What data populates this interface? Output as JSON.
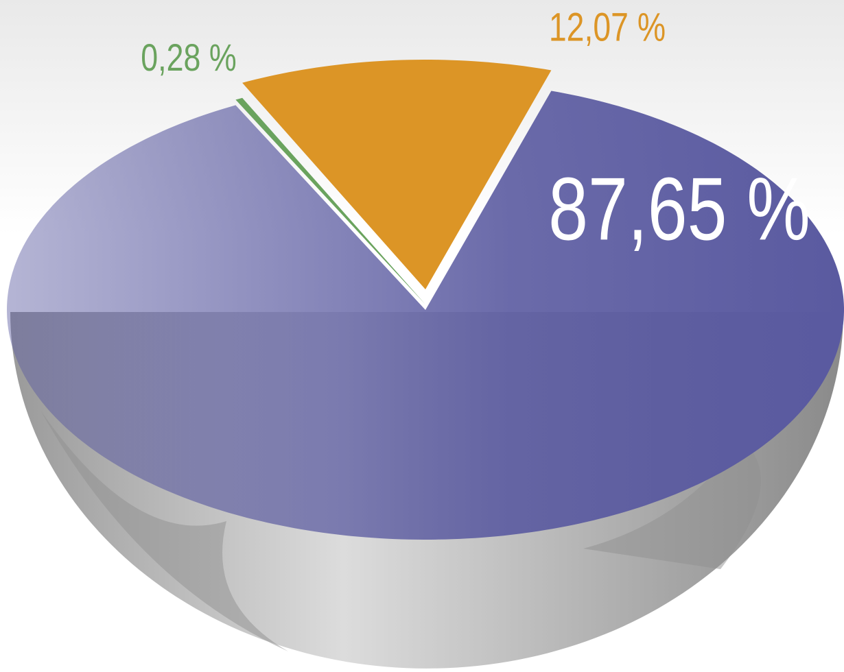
{
  "chart_data": {
    "type": "pie",
    "values": [
      87.65,
      0.28,
      12.07
    ],
    "value_labels": [
      "87,65 %",
      "0,28 %",
      "12,07 %"
    ],
    "colors": [
      "#5a5aa0",
      "#6aa35e",
      "#dc9526"
    ]
  }
}
